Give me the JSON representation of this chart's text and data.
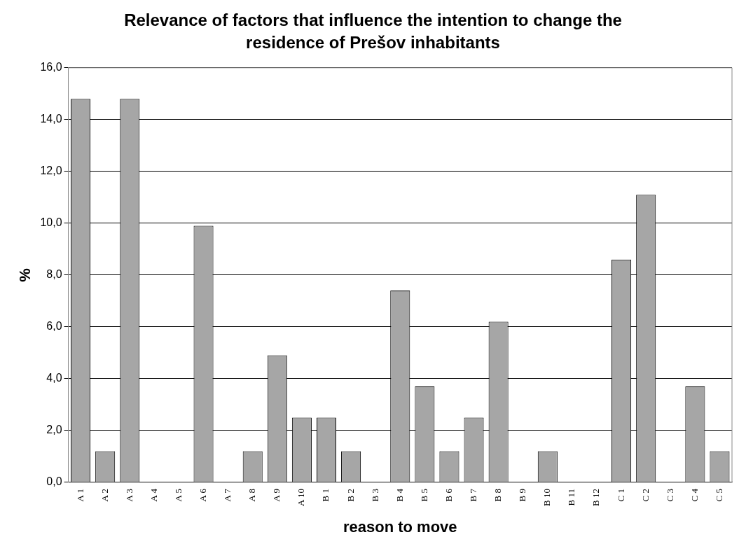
{
  "chart_data": {
    "type": "bar",
    "title": "Relevance of factors that influence the intention to change the residence of Prešov inhabitants",
    "xlabel": "reason to move",
    "ylabel": "%",
    "categories": [
      "A 1",
      "A 2",
      "A 3",
      "A 4",
      "A 5",
      "A 6",
      "A 7",
      "A 8",
      "A 9",
      "A 10",
      "B 1",
      "B 2",
      "B 3",
      "B 4",
      "B 5",
      "B 6",
      "B 7",
      "B 8",
      "B 9",
      "B 10",
      "B 11",
      "B 12",
      "C 1",
      "C 2",
      "C 3",
      "C 4",
      "C 5"
    ],
    "values": [
      14.8,
      1.2,
      14.8,
      0,
      0,
      9.9,
      0,
      1.2,
      4.9,
      2.5,
      2.5,
      1.2,
      0,
      7.4,
      3.7,
      1.2,
      2.5,
      6.2,
      0,
      1.2,
      0,
      0,
      8.6,
      11.1,
      0,
      3.7,
      1.2
    ],
    "color": "#a6a6a6",
    "ylim": [
      0,
      16
    ],
    "yticks": [
      {
        "value": 0,
        "label": "0,0"
      },
      {
        "value": 2,
        "label": "2,0"
      },
      {
        "value": 4,
        "label": "4,0"
      },
      {
        "value": 6,
        "label": "6,0"
      },
      {
        "value": 8,
        "label": "8,0"
      },
      {
        "value": 10,
        "label": "10,0"
      },
      {
        "value": 12,
        "label": "12,0"
      },
      {
        "value": 14,
        "label": "14,0"
      },
      {
        "value": 16,
        "label": "16,0"
      }
    ],
    "grid": "y",
    "legend": false
  }
}
